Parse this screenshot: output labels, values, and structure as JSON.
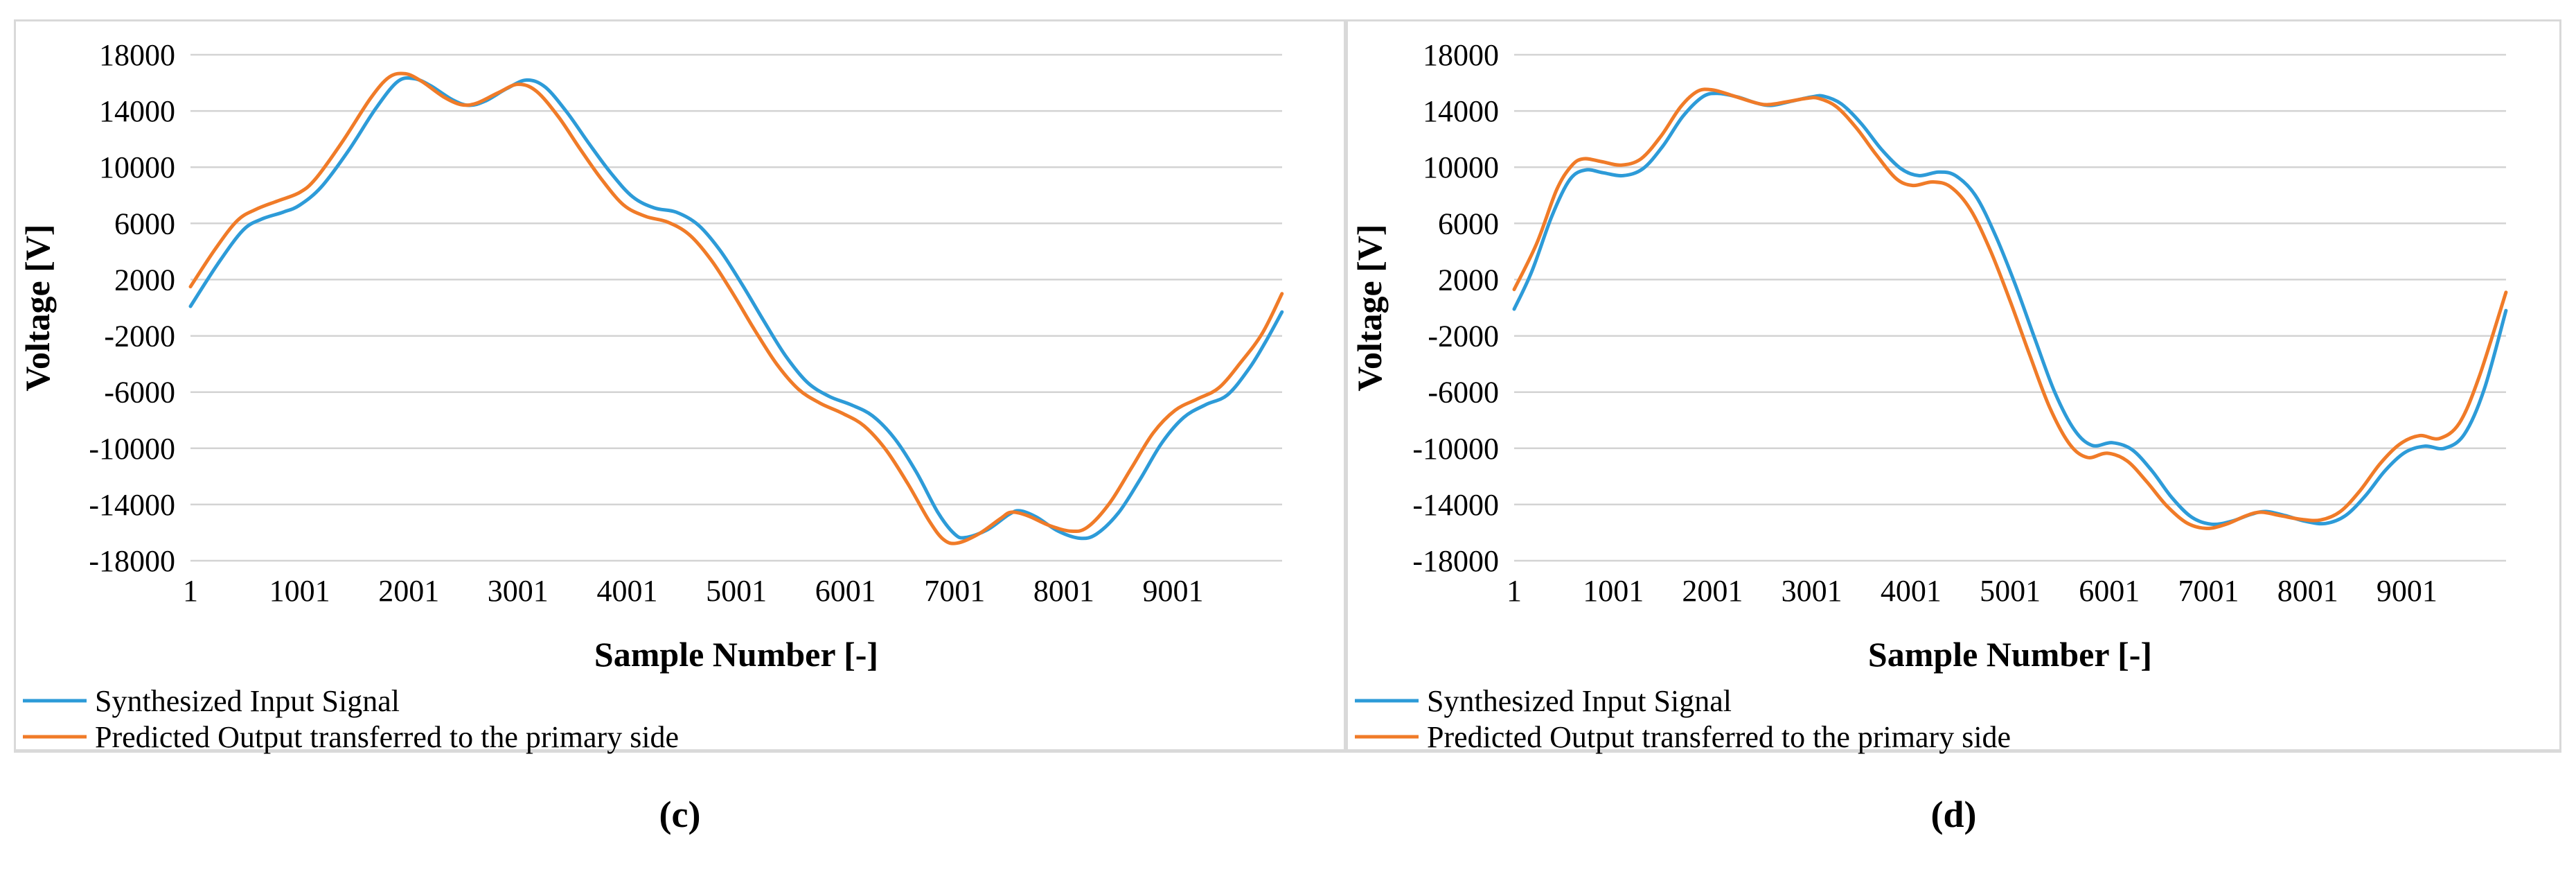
{
  "figure_labels": {
    "left": "(c)",
    "right": "(d)"
  },
  "colors": {
    "blue": "#2D9BD8",
    "orange": "#F07B28",
    "gridline": "#D3D3D3",
    "panel_border": "#D9D9D9",
    "text": "#000000",
    "background": "#FFFFFF"
  },
  "chart_data": [
    {
      "type": "line",
      "panel_label": "(c)",
      "title": "",
      "xlabel": "Sample Number [-]",
      "ylabel": "Voltage [V]",
      "xlim": [
        1,
        10000
      ],
      "ylim": [
        -18000,
        18000
      ],
      "yticks": [
        18000,
        14000,
        10000,
        6000,
        2000,
        -2000,
        -6000,
        -10000,
        -14000,
        -18000
      ],
      "xticks": [
        1,
        1001,
        2001,
        3001,
        4001,
        5001,
        6001,
        7001,
        8001,
        9001
      ],
      "grid": "horizontal-only",
      "legend_position": "bottom-left",
      "series": [
        {
          "name": "Synthesized Input Signal",
          "color_key": "blue",
          "points": [
            [
              1,
              100
            ],
            [
              250,
              3100
            ],
            [
              480,
              5500
            ],
            [
              650,
              6300
            ],
            [
              850,
              6800
            ],
            [
              1001,
              7300
            ],
            [
              1200,
              8600
            ],
            [
              1450,
              11200
            ],
            [
              1700,
              14200
            ],
            [
              1900,
              16100
            ],
            [
              2050,
              16300
            ],
            [
              2200,
              15800
            ],
            [
              2400,
              14800
            ],
            [
              2550,
              14400
            ],
            [
              2700,
              14700
            ],
            [
              2900,
              15600
            ],
            [
              3080,
              16200
            ],
            [
              3250,
              15700
            ],
            [
              3450,
              13900
            ],
            [
              3650,
              11700
            ],
            [
              3850,
              9600
            ],
            [
              4050,
              7900
            ],
            [
              4250,
              7100
            ],
            [
              4450,
              6800
            ],
            [
              4650,
              5900
            ],
            [
              4850,
              4100
            ],
            [
              5050,
              1700
            ],
            [
              5250,
              -900
            ],
            [
              5450,
              -3400
            ],
            [
              5650,
              -5300
            ],
            [
              5850,
              -6300
            ],
            [
              6050,
              -6900
            ],
            [
              6250,
              -7700
            ],
            [
              6450,
              -9300
            ],
            [
              6650,
              -11700
            ],
            [
              6850,
              -14600
            ],
            [
              7000,
              -16100
            ],
            [
              7100,
              -16350
            ],
            [
              7300,
              -15800
            ],
            [
              7500,
              -14700
            ],
            [
              7600,
              -14450
            ],
            [
              7750,
              -14900
            ],
            [
              7950,
              -15900
            ],
            [
              8150,
              -16400
            ],
            [
              8300,
              -16100
            ],
            [
              8500,
              -14600
            ],
            [
              8700,
              -12200
            ],
            [
              8900,
              -9600
            ],
            [
              9100,
              -7800
            ],
            [
              9300,
              -6900
            ],
            [
              9500,
              -6200
            ],
            [
              9700,
              -4300
            ],
            [
              9850,
              -2400
            ],
            [
              9999,
              -300
            ]
          ]
        },
        {
          "name": "Predicted Output transferred to the primary side",
          "color_key": "orange",
          "points": [
            [
              1,
              1500
            ],
            [
              230,
              4200
            ],
            [
              430,
              6200
            ],
            [
              600,
              7000
            ],
            [
              800,
              7600
            ],
            [
              1001,
              8200
            ],
            [
              1150,
              9200
            ],
            [
              1400,
              11900
            ],
            [
              1650,
              14900
            ],
            [
              1820,
              16400
            ],
            [
              1970,
              16650
            ],
            [
              2120,
              16100
            ],
            [
              2320,
              15000
            ],
            [
              2480,
              14450
            ],
            [
              2620,
              14550
            ],
            [
              2820,
              15300
            ],
            [
              3000,
              15900
            ],
            [
              3170,
              15400
            ],
            [
              3370,
              13600
            ],
            [
              3570,
              11300
            ],
            [
              3770,
              9100
            ],
            [
              3970,
              7300
            ],
            [
              4170,
              6500
            ],
            [
              4370,
              6100
            ],
            [
              4570,
              5200
            ],
            [
              4770,
              3400
            ],
            [
              4970,
              1000
            ],
            [
              5170,
              -1600
            ],
            [
              5370,
              -4000
            ],
            [
              5570,
              -5800
            ],
            [
              5770,
              -6800
            ],
            [
              5970,
              -7500
            ],
            [
              6170,
              -8400
            ],
            [
              6370,
              -10100
            ],
            [
              6570,
              -12500
            ],
            [
              6770,
              -15200
            ],
            [
              6900,
              -16500
            ],
            [
              7020,
              -16750
            ],
            [
              7220,
              -16100
            ],
            [
              7420,
              -15000
            ],
            [
              7520,
              -14550
            ],
            [
              7670,
              -14800
            ],
            [
              7870,
              -15500
            ],
            [
              8070,
              -15900
            ],
            [
              8220,
              -15600
            ],
            [
              8420,
              -13900
            ],
            [
              8620,
              -11400
            ],
            [
              8820,
              -8900
            ],
            [
              9020,
              -7300
            ],
            [
              9220,
              -6500
            ],
            [
              9420,
              -5700
            ],
            [
              9620,
              -3900
            ],
            [
              9820,
              -1800
            ],
            [
              9999,
              1000
            ]
          ]
        }
      ]
    },
    {
      "type": "line",
      "panel_label": "(d)",
      "title": "",
      "xlabel": "Sample Number [-]",
      "ylabel": "Voltage [V]",
      "xlim": [
        1,
        10000
      ],
      "ylim": [
        -18000,
        18000
      ],
      "yticks": [
        18000,
        14000,
        10000,
        6000,
        2000,
        -2000,
        -6000,
        -10000,
        -14000,
        -18000
      ],
      "xticks": [
        1,
        1001,
        2001,
        3001,
        4001,
        5001,
        6001,
        7001,
        8001,
        9001
      ],
      "grid": "horizontal-only",
      "legend_position": "bottom-left",
      "series": [
        {
          "name": "Synthesized Input Signal",
          "color_key": "blue",
          "points": [
            [
              1,
              -100
            ],
            [
              180,
              2600
            ],
            [
              380,
              6500
            ],
            [
              560,
              9100
            ],
            [
              720,
              9800
            ],
            [
              900,
              9600
            ],
            [
              1100,
              9400
            ],
            [
              1300,
              9900
            ],
            [
              1500,
              11500
            ],
            [
              1700,
              13600
            ],
            [
              1900,
              15000
            ],
            [
              2050,
              15250
            ],
            [
              2250,
              15000
            ],
            [
              2450,
              14550
            ],
            [
              2600,
              14400
            ],
            [
              2800,
              14700
            ],
            [
              3000,
              15000
            ],
            [
              3120,
              15050
            ],
            [
              3300,
              14500
            ],
            [
              3500,
              13100
            ],
            [
              3700,
              11300
            ],
            [
              3900,
              9900
            ],
            [
              4080,
              9400
            ],
            [
              4280,
              9650
            ],
            [
              4450,
              9400
            ],
            [
              4650,
              8000
            ],
            [
              4850,
              5200
            ],
            [
              5050,
              1700
            ],
            [
              5250,
              -2200
            ],
            [
              5450,
              -6000
            ],
            [
              5650,
              -8700
            ],
            [
              5830,
              -9800
            ],
            [
              6030,
              -9600
            ],
            [
              6230,
              -10100
            ],
            [
              6430,
              -11600
            ],
            [
              6630,
              -13500
            ],
            [
              6830,
              -14900
            ],
            [
              7030,
              -15400
            ],
            [
              7230,
              -15200
            ],
            [
              7430,
              -14700
            ],
            [
              7580,
              -14500
            ],
            [
              7780,
              -14800
            ],
            [
              7980,
              -15200
            ],
            [
              8180,
              -15350
            ],
            [
              8380,
              -14800
            ],
            [
              8580,
              -13400
            ],
            [
              8780,
              -11600
            ],
            [
              8980,
              -10300
            ],
            [
              9180,
              -9850
            ],
            [
              9380,
              -10000
            ],
            [
              9580,
              -9000
            ],
            [
              9780,
              -5800
            ],
            [
              9999,
              -200
            ]
          ]
        },
        {
          "name": "Predicted Output transferred to the primary side",
          "color_key": "orange",
          "points": [
            [
              1,
              1300
            ],
            [
              230,
              4600
            ],
            [
              430,
              8400
            ],
            [
              580,
              10100
            ],
            [
              700,
              10600
            ],
            [
              880,
              10400
            ],
            [
              1080,
              10150
            ],
            [
              1280,
              10600
            ],
            [
              1480,
              12200
            ],
            [
              1680,
              14300
            ],
            [
              1850,
              15400
            ],
            [
              2000,
              15500
            ],
            [
              2200,
              15100
            ],
            [
              2400,
              14650
            ],
            [
              2550,
              14450
            ],
            [
              2750,
              14650
            ],
            [
              2950,
              14900
            ],
            [
              3070,
              14900
            ],
            [
              3250,
              14300
            ],
            [
              3450,
              12800
            ],
            [
              3650,
              10900
            ],
            [
              3850,
              9200
            ],
            [
              4020,
              8700
            ],
            [
              4220,
              8950
            ],
            [
              4400,
              8600
            ],
            [
              4600,
              7000
            ],
            [
              4800,
              4100
            ],
            [
              5000,
              500
            ],
            [
              5200,
              -3400
            ],
            [
              5400,
              -7100
            ],
            [
              5600,
              -9700
            ],
            [
              5780,
              -10650
            ],
            [
              5980,
              -10350
            ],
            [
              6180,
              -10900
            ],
            [
              6380,
              -12400
            ],
            [
              6580,
              -14100
            ],
            [
              6780,
              -15300
            ],
            [
              6980,
              -15700
            ],
            [
              7180,
              -15400
            ],
            [
              7380,
              -14800
            ],
            [
              7530,
              -14550
            ],
            [
              7730,
              -14800
            ],
            [
              7930,
              -15050
            ],
            [
              8130,
              -15100
            ],
            [
              8330,
              -14500
            ],
            [
              8530,
              -13000
            ],
            [
              8730,
              -11100
            ],
            [
              8930,
              -9700
            ],
            [
              9130,
              -9100
            ],
            [
              9330,
              -9300
            ],
            [
              9530,
              -8200
            ],
            [
              9730,
              -4900
            ],
            [
              9999,
              1100
            ]
          ]
        }
      ]
    }
  ]
}
